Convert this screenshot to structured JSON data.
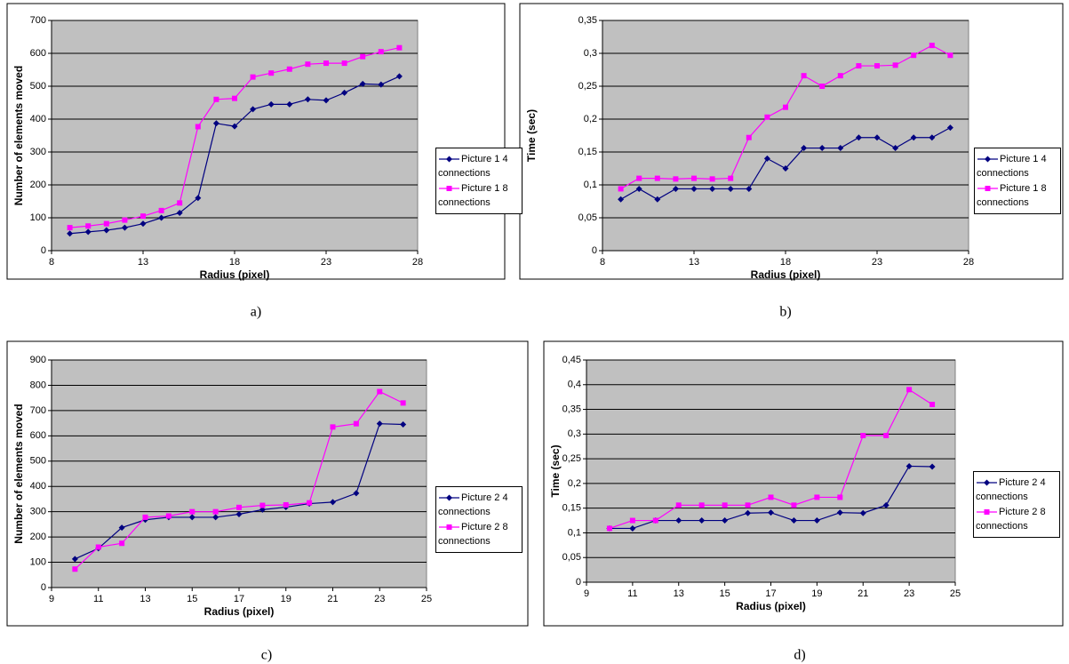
{
  "chart_data": [
    {
      "type": "line",
      "caption": "a)",
      "xlabel": "Radius (pixel)",
      "ylabel": "Number of elements moved",
      "x": [
        9,
        10,
        11,
        12,
        13,
        14,
        15,
        16,
        17,
        18,
        19,
        20,
        21,
        22,
        23,
        24,
        25,
        26,
        27
      ],
      "xlim": [
        8,
        28
      ],
      "xticks": [
        8,
        13,
        18,
        23,
        28
      ],
      "ylim": [
        0,
        700
      ],
      "yticks": [
        0,
        100,
        200,
        300,
        400,
        500,
        600,
        700
      ],
      "grid": true,
      "series": [
        {
          "name": "Picture 1 4 connections",
          "color": "#000080",
          "marker": "diamond",
          "values": [
            52,
            57,
            62,
            70,
            82,
            100,
            115,
            160,
            387,
            378,
            430,
            445,
            445,
            460,
            457,
            480,
            507,
            505,
            530
          ]
        },
        {
          "name": "Picture 1 8 connections",
          "color": "#ff00ff",
          "marker": "square",
          "values": [
            70,
            75,
            82,
            93,
            105,
            122,
            145,
            377,
            460,
            463,
            528,
            540,
            552,
            567,
            570,
            570,
            590,
            605,
            617
          ]
        }
      ]
    },
    {
      "type": "line",
      "caption": "b)",
      "xlabel": "Radius (pixel)",
      "ylabel": "Time (sec)",
      "x": [
        9,
        10,
        11,
        12,
        13,
        14,
        15,
        16,
        17,
        18,
        19,
        20,
        21,
        22,
        23,
        24,
        25,
        26,
        27
      ],
      "xlim": [
        8,
        28
      ],
      "xticks": [
        8,
        13,
        18,
        23,
        28
      ],
      "ylim": [
        0,
        0.35
      ],
      "yticks": [
        0,
        {
          "value": 0.05,
          "label": "0,05"
        },
        {
          "value": 0.1,
          "label": "0,1"
        },
        {
          "value": 0.15,
          "label": "0,15"
        },
        {
          "value": 0.2,
          "label": "0,2"
        },
        {
          "value": 0.25,
          "label": "0,25"
        },
        {
          "value": 0.3,
          "label": "0,3"
        },
        {
          "value": 0.35,
          "label": "0,35"
        }
      ],
      "grid": true,
      "series": [
        {
          "name": "Picture 1 4 connections",
          "color": "#000080",
          "marker": "diamond",
          "values": [
            0.078,
            0.094,
            0.078,
            0.094,
            0.094,
            0.094,
            0.094,
            0.094,
            0.14,
            0.125,
            0.156,
            0.156,
            0.156,
            0.172,
            0.172,
            0.156,
            0.172,
            0.172,
            0.187
          ]
        },
        {
          "name": "Picture 1 8 connections",
          "color": "#ff00ff",
          "marker": "square",
          "values": [
            0.094,
            0.11,
            0.11,
            0.109,
            0.11,
            0.109,
            0.11,
            0.172,
            0.203,
            0.218,
            0.266,
            0.25,
            0.266,
            0.281,
            0.281,
            0.282,
            0.297,
            0.312,
            0.297
          ]
        }
      ]
    },
    {
      "type": "line",
      "caption": "c)",
      "xlabel": "Radius (pixel)",
      "ylabel": "Number of elements moved",
      "x": [
        10,
        11,
        12,
        13,
        14,
        15,
        16,
        17,
        18,
        19,
        20,
        21,
        22,
        23,
        24
      ],
      "xlim": [
        9,
        25
      ],
      "xticks": [
        9,
        11,
        13,
        15,
        17,
        19,
        21,
        23,
        25
      ],
      "ylim": [
        0,
        900
      ],
      "yticks": [
        0,
        100,
        200,
        300,
        400,
        500,
        600,
        700,
        800,
        900
      ],
      "grid": true,
      "series": [
        {
          "name": "Picture 2 4 connections",
          "color": "#000080",
          "marker": "diamond",
          "values": [
            113,
            155,
            237,
            268,
            278,
            278,
            278,
            290,
            308,
            318,
            332,
            338,
            373,
            648,
            645
          ]
        },
        {
          "name": "Picture 2 8 connections",
          "color": "#ff00ff",
          "marker": "square",
          "values": [
            73,
            160,
            175,
            278,
            283,
            300,
            300,
            317,
            325,
            327,
            335,
            635,
            648,
            775,
            730
          ]
        }
      ]
    },
    {
      "type": "line",
      "caption": "d)",
      "xlabel": "Radius (pixel)",
      "ylabel": "Time (sec)",
      "x": [
        10,
        11,
        12,
        13,
        14,
        15,
        16,
        17,
        18,
        19,
        20,
        21,
        22,
        23,
        24
      ],
      "xlim": [
        9,
        25
      ],
      "xticks": [
        9,
        11,
        13,
        15,
        17,
        19,
        21,
        23,
        25
      ],
      "ylim": [
        0,
        0.45
      ],
      "yticks": [
        0,
        {
          "value": 0.05,
          "label": "0,05"
        },
        {
          "value": 0.1,
          "label": "0,1"
        },
        {
          "value": 0.15,
          "label": "0,15"
        },
        {
          "value": 0.2,
          "label": "0,2"
        },
        {
          "value": 0.25,
          "label": "0,25"
        },
        {
          "value": 0.3,
          "label": "0,3"
        },
        {
          "value": 0.35,
          "label": "0,35"
        },
        {
          "value": 0.4,
          "label": "0,4"
        },
        {
          "value": 0.45,
          "label": "0,45"
        }
      ],
      "grid": true,
      "series": [
        {
          "name": "Picture 2 4 connections",
          "color": "#000080",
          "marker": "diamond",
          "values": [
            0.109,
            0.109,
            0.125,
            0.125,
            0.125,
            0.125,
            0.14,
            0.141,
            0.125,
            0.125,
            0.141,
            0.14,
            0.156,
            0.235,
            0.234
          ]
        },
        {
          "name": "Picture 2 8 connections",
          "color": "#ff00ff",
          "marker": "square",
          "values": [
            0.109,
            0.125,
            0.125,
            0.156,
            0.156,
            0.156,
            0.156,
            0.172,
            0.156,
            0.172,
            0.172,
            0.297,
            0.297,
            0.39,
            0.36
          ]
        }
      ]
    }
  ]
}
